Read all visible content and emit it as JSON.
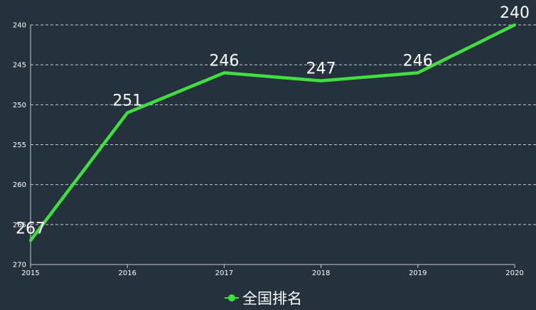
{
  "chart_data": {
    "type": "line",
    "title": "",
    "xlabel": "",
    "ylabel": "",
    "categories": [
      "2015",
      "2016",
      "2017",
      "2018",
      "2019",
      "2020"
    ],
    "series": [
      {
        "name": "全国排名",
        "values": [
          267,
          251,
          246,
          247,
          246,
          240
        ],
        "color": "#3fdf3f"
      }
    ],
    "y_ticks": [
      "240",
      "245",
      "250",
      "255",
      "260",
      "265",
      "270"
    ],
    "ylim": [
      270,
      240
    ],
    "y_inverted": true,
    "grid": true,
    "legend_position": "bottom-center",
    "colors": {
      "background": "#25323e",
      "line": "#3fdf3f",
      "text": "#ffffff",
      "grid": "#c8ccd0"
    }
  }
}
